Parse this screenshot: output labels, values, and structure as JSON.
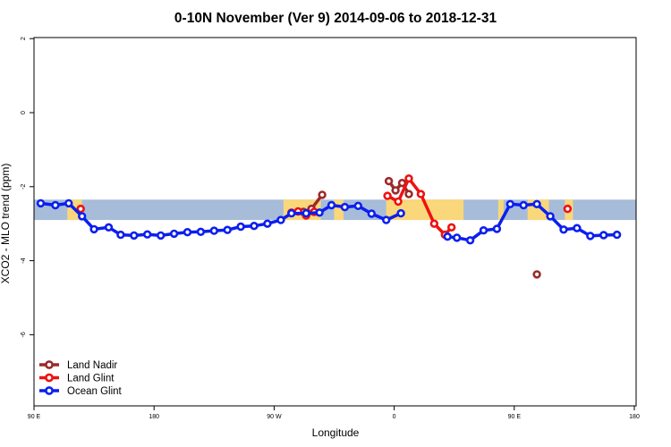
{
  "chart_data": {
    "type": "line",
    "title": "0-10N November (Ver 9)   2014-09-06 to 2018-12-31",
    "xlabel": "Longitude",
    "ylabel": "XCO2 - MLO trend (ppm)",
    "xlim": [
      90,
      540
    ],
    "ylim": [
      -8,
      2.1
    ],
    "x_ticks": [
      {
        "value": 90,
        "label": "90 E"
      },
      {
        "value": 180,
        "label": "180"
      },
      {
        "value": 270,
        "label": "90 W"
      },
      {
        "value": 360,
        "label": "0"
      },
      {
        "value": 450,
        "label": "90 E"
      },
      {
        "value": 540,
        "label": "180"
      }
    ],
    "y_ticks": [
      {
        "value": 2,
        "label": "2"
      },
      {
        "value": 0,
        "label": "0"
      },
      {
        "value": -2,
        "label": "-2"
      },
      {
        "value": -4,
        "label": "-4"
      },
      {
        "value": -6,
        "label": "-6"
      }
    ],
    "background_band": {
      "y_range": [
        -2.35,
        -2.9
      ],
      "ocean_color": "#a7bcd9",
      "land_color": "#f9d77a"
    },
    "land_segments": [
      [
        115,
        126
      ],
      [
        277,
        305
      ],
      [
        315,
        322
      ],
      [
        354,
        412
      ],
      [
        438,
        442
      ],
      [
        460,
        476
      ],
      [
        488,
        494
      ]
    ],
    "series": [
      {
        "name": "Land Nadir",
        "color": "#9b2a2a",
        "segments": [
          [
            [
              292,
              -2.68
            ],
            [
              298,
              -2.6
            ],
            [
              306,
              -2.22
            ]
          ],
          [
            [
              356,
              -1.85
            ],
            [
              361,
              -2.1
            ],
            [
              366,
              -1.9
            ],
            [
              371,
              -2.2
            ]
          ],
          [
            [
              467,
              -4.37
            ]
          ]
        ]
      },
      {
        "name": "Land Glint",
        "color": "#ee1111",
        "segments": [
          [
            [
              125,
              -2.6
            ]
          ],
          [
            [
              283,
              -2.7
            ],
            [
              288,
              -2.67
            ],
            [
              294,
              -2.78
            ],
            [
              300,
              -2.68
            ]
          ],
          [
            [
              355,
              -2.25
            ],
            [
              363,
              -2.4
            ],
            [
              371,
              -1.78
            ],
            [
              380,
              -2.2
            ],
            [
              390,
              -3.0
            ],
            [
              398,
              -3.3
            ],
            [
              403,
              -3.1
            ]
          ],
          [
            [
              490,
              -2.6
            ]
          ]
        ]
      },
      {
        "name": "Ocean Glint",
        "color": "#0b1fee",
        "segments": [
          [
            [
              95,
              -2.45
            ],
            [
              106,
              -2.5
            ],
            [
              116,
              -2.45
            ],
            [
              126,
              -2.8
            ],
            [
              135,
              -3.15
            ],
            [
              146,
              -3.1
            ],
            [
              155,
              -3.3
            ],
            [
              165,
              -3.32
            ],
            [
              175,
              -3.29
            ],
            [
              185,
              -3.32
            ],
            [
              195,
              -3.27
            ],
            [
              205,
              -3.23
            ],
            [
              215,
              -3.22
            ],
            [
              225,
              -3.19
            ],
            [
              235,
              -3.17
            ],
            [
              245,
              -3.08
            ],
            [
              255,
              -3.06
            ],
            [
              265,
              -3.0
            ],
            [
              275,
              -2.9
            ],
            [
              283,
              -2.72
            ],
            [
              294,
              -2.72
            ],
            [
              304,
              -2.7
            ],
            [
              313,
              -2.5
            ],
            [
              323,
              -2.55
            ],
            [
              333,
              -2.52
            ],
            [
              343,
              -2.73
            ],
            [
              354,
              -2.9
            ],
            [
              365,
              -2.72
            ]
          ],
          [
            [
              400,
              -3.35
            ],
            [
              407,
              -3.38
            ],
            [
              417,
              -3.45
            ],
            [
              427,
              -3.18
            ],
            [
              437,
              -3.14
            ],
            [
              447,
              -2.47
            ],
            [
              457,
              -2.5
            ],
            [
              467,
              -2.47
            ],
            [
              477,
              -2.8
            ],
            [
              487,
              -3.16
            ],
            [
              497,
              -3.12
            ],
            [
              507,
              -3.33
            ],
            [
              517,
              -3.31
            ],
            [
              527,
              -3.3
            ]
          ]
        ]
      }
    ],
    "legend": {
      "position": "bottom-left",
      "items": [
        "Land Nadir",
        "Land Glint",
        "Ocean Glint"
      ]
    }
  }
}
